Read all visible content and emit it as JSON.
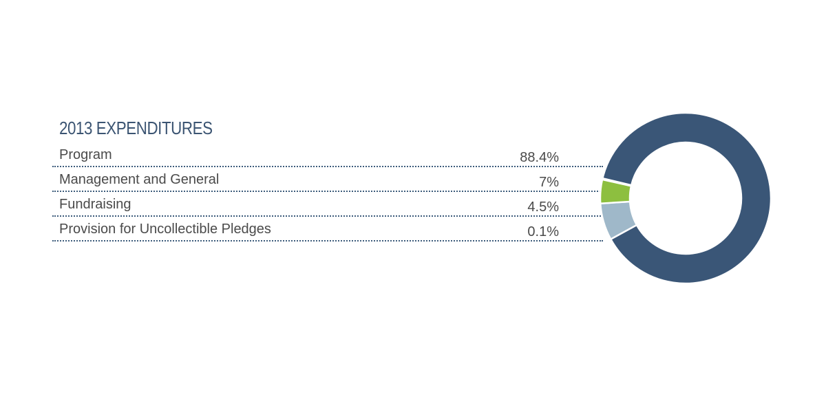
{
  "chart_data": {
    "type": "pie",
    "title": "2013 EXPENDITURES",
    "categories": [
      "Program",
      "Management and General",
      "Fundraising",
      "Provision for Uncollectible Pledges"
    ],
    "values": [
      88.4,
      7,
      4.5,
      0.1
    ],
    "value_labels": [
      "88.4%",
      "7%",
      "4.5%",
      "0.1%"
    ],
    "colors": [
      "#3a5677",
      "#9fb8c9",
      "#8dbf3f",
      "#7f93a8"
    ],
    "style": "donut",
    "legend": "left"
  }
}
